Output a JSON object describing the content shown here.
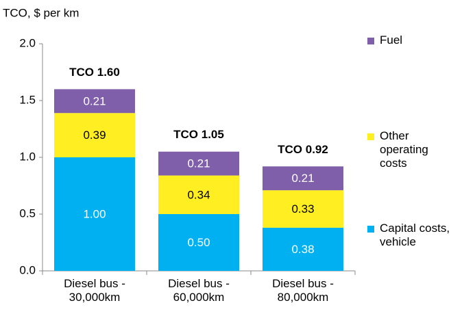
{
  "chart_data": {
    "type": "stacked_bar",
    "title": "TCO, $ per km",
    "categories": [
      "Diesel bus - 30,000km",
      "Diesel bus - 60,000km",
      "Diesel bus - 80,000km"
    ],
    "series": [
      {
        "name": "Capital costs, vehicle",
        "color": "#00b0f0",
        "values": [
          1.0,
          0.5,
          0.38
        ],
        "value_labels": [
          "1.00",
          "0.50",
          "0.38"
        ]
      },
      {
        "name": "Other operating costs",
        "color": "#ffee22",
        "values": [
          0.39,
          0.34,
          0.33
        ],
        "value_labels": [
          "0.39",
          "0.34",
          "0.33"
        ]
      },
      {
        "name": "Fuel",
        "color": "#7f5fa9",
        "values": [
          0.21,
          0.21,
          0.21
        ],
        "value_labels": [
          "0.21",
          "0.21",
          "0.21"
        ]
      }
    ],
    "annotations": [
      "TCO 1.60",
      "TCO 1.05",
      "TCO 0.92"
    ],
    "ylim": [
      0,
      2.0
    ],
    "yticks": [
      {
        "value": 0,
        "label": "0.0"
      },
      {
        "value": 0.5,
        "label": "0.5"
      },
      {
        "value": 1.0,
        "label": "1.0"
      },
      {
        "value": 1.5,
        "label": "1.5"
      },
      {
        "value": 2.0,
        "label": "2.0"
      }
    ],
    "legend": "right"
  }
}
